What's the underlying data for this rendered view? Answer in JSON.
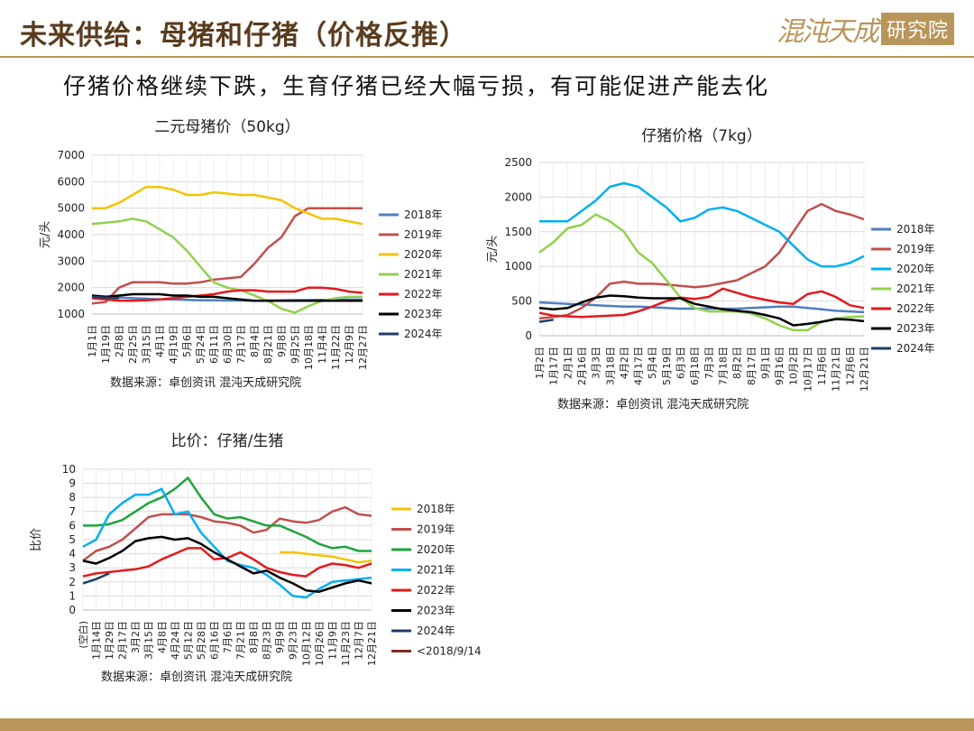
{
  "header": {
    "title": "未来供给：母猪和仔猪（价格反推）",
    "logo_text": "混沌天成",
    "logo_seal": "研究院",
    "subtitle": "仔猪价格继续下跌，生育仔猪已经大幅亏损，有可能促进产能去化"
  },
  "colors": {
    "accent": "#b8955a",
    "title": "#5a3c1e"
  },
  "chart_data": [
    {
      "id": "sow",
      "type": "line",
      "title": "二元母猪价（50kg）",
      "ylabel": "元/头",
      "xlabel": "",
      "source": "数据来源：卓创资讯  混沌天成研究院",
      "ylim": [
        1000,
        7000
      ],
      "yticks": [
        1000,
        2000,
        3000,
        4000,
        5000,
        6000,
        7000
      ],
      "grid": true,
      "legend_position": "right",
      "x_labels": [
        "1月1日",
        "1月19日",
        "2月8日",
        "2月25日",
        "3月15日",
        "4月1日",
        "4月19日",
        "5月6日",
        "5月24日",
        "6月11日",
        "6月30日",
        "7月17日",
        "8月4日",
        "8月21日",
        "9月8日",
        "9月25日",
        "10月18日",
        "11月4日",
        "11月22日",
        "12月9日",
        "12月27日"
      ],
      "series": [
        {
          "name": "2018年",
          "color": "#4e7fc1",
          "values": [
            1700,
            1660,
            1620,
            1600,
            1580,
            1560,
            1550,
            1540,
            1520,
            1520,
            1510,
            1510,
            1500,
            1510,
            1520,
            1530,
            1530,
            1540,
            1550,
            1550,
            1550
          ]
        },
        {
          "name": "2019年",
          "color": "#c0504d",
          "values": [
            1400,
            1450,
            2000,
            2200,
            2200,
            2200,
            2150,
            2150,
            2200,
            2300,
            2350,
            2400,
            2900,
            3500,
            3900,
            4700,
            5000,
            5000,
            5000,
            5000,
            5000
          ]
        },
        {
          "name": "2020年",
          "color": "#f2c400",
          "values": [
            5000,
            5000,
            5200,
            5500,
            5800,
            5800,
            5700,
            5500,
            5500,
            5600,
            5550,
            5500,
            5500,
            5400,
            5300,
            5000,
            4800,
            4600,
            4600,
            4500,
            4400
          ]
        },
        {
          "name": "2021年",
          "color": "#92d050",
          "values": [
            4400,
            4450,
            4500,
            4600,
            4500,
            4200,
            3900,
            3400,
            2800,
            2200,
            2000,
            1900,
            1700,
            1500,
            1200,
            1050,
            1300,
            1500,
            1600,
            1650,
            1650
          ]
        },
        {
          "name": "2022年",
          "color": "#e41a1c",
          "values": [
            1600,
            1550,
            1500,
            1500,
            1520,
            1550,
            1600,
            1650,
            1700,
            1750,
            1850,
            1900,
            1900,
            1850,
            1850,
            1850,
            2000,
            2000,
            1950,
            1850,
            1800
          ]
        },
        {
          "name": "2023年",
          "color": "#000000",
          "values": [
            1700,
            1650,
            1700,
            1750,
            1750,
            1750,
            1700,
            1700,
            1650,
            1650,
            1600,
            1550,
            1500,
            1500,
            1500,
            1500,
            1500,
            1500,
            1500,
            1500,
            1500
          ]
        },
        {
          "name": "2024年",
          "color": "#1f3d68",
          "values": [
            1650,
            1620,
            1600,
            null,
            null,
            null,
            null,
            null,
            null,
            null,
            null,
            null,
            null,
            null,
            null,
            null,
            null,
            null,
            null,
            null,
            null
          ]
        }
      ]
    },
    {
      "id": "piglet",
      "type": "line",
      "title": "仔猪价格（7kg）",
      "ylabel": "元/头",
      "xlabel": "",
      "source": "数据来源：卓创资讯  混沌天成研究院",
      "ylim": [
        0,
        2500
      ],
      "yticks": [
        0,
        500,
        1000,
        1500,
        2000,
        2500
      ],
      "grid": true,
      "legend_position": "right",
      "x_labels": [
        "1月2日",
        "1月17日",
        "2月1日",
        "2月16日",
        "3月3日",
        "3月18日",
        "4月2日",
        "4月17日",
        "5月4日",
        "5月19日",
        "6月3日",
        "6月18日",
        "7月3日",
        "7月18日",
        "8月2日",
        "8月17日",
        "9月1日",
        "9月16日",
        "10月2日",
        "10月17日",
        "11月6日",
        "11月21日",
        "12月6日",
        "12月21日"
      ],
      "series": [
        {
          "name": "2018年",
          "color": "#4e7fc1",
          "values": [
            480,
            470,
            460,
            450,
            440,
            430,
            420,
            420,
            410,
            400,
            390,
            390,
            390,
            390,
            390,
            400,
            410,
            420,
            420,
            400,
            380,
            360,
            350,
            340
          ]
        },
        {
          "name": "2019年",
          "color": "#c0504d",
          "values": [
            250,
            270,
            300,
            400,
            550,
            750,
            780,
            750,
            750,
            740,
            720,
            700,
            720,
            760,
            800,
            900,
            1000,
            1200,
            1500,
            1800,
            1900,
            1800,
            1750,
            1680
          ]
        },
        {
          "name": "2020年",
          "color": "#00b0f0",
          "values": [
            1650,
            1650,
            1650,
            1800,
            1950,
            2150,
            2200,
            2150,
            2000,
            1850,
            1650,
            1700,
            1820,
            1850,
            1800,
            1700,
            1600,
            1500,
            1300,
            1100,
            1000,
            1000,
            1050,
            1150
          ]
        },
        {
          "name": "2021年",
          "color": "#92d050",
          "values": [
            1200,
            1350,
            1550,
            1600,
            1750,
            1650,
            1500,
            1200,
            1050,
            800,
            550,
            400,
            350,
            350,
            350,
            320,
            250,
            150,
            80,
            80,
            200,
            250,
            270,
            280
          ]
        },
        {
          "name": "2022年",
          "color": "#e41a1c",
          "values": [
            330,
            290,
            280,
            270,
            280,
            290,
            300,
            350,
            420,
            500,
            550,
            530,
            560,
            680,
            620,
            560,
            520,
            480,
            460,
            600,
            640,
            560,
            440,
            400
          ]
        },
        {
          "name": "2023年",
          "color": "#000000",
          "values": [
            400,
            380,
            400,
            480,
            550,
            580,
            570,
            550,
            540,
            540,
            540,
            460,
            420,
            380,
            360,
            340,
            300,
            250,
            150,
            170,
            200,
            240,
            230,
            210
          ]
        },
        {
          "name": "2024年",
          "color": "#1f3d68",
          "values": [
            200,
            230,
            null,
            null,
            null,
            null,
            null,
            null,
            null,
            null,
            null,
            null,
            null,
            null,
            null,
            null,
            null,
            null,
            null,
            null,
            null,
            null,
            null,
            null
          ]
        }
      ]
    },
    {
      "id": "ratio",
      "type": "line",
      "title": "比价：仔猪/生猪",
      "ylabel": "比价",
      "xlabel": "",
      "source": "数据来源：卓创资讯  混沌天成研究院",
      "ylim": [
        0,
        10
      ],
      "yticks": [
        0,
        1,
        2,
        3,
        4,
        5,
        6,
        7,
        8,
        9,
        10
      ],
      "grid": true,
      "legend_position": "right",
      "x_labels": [
        "(空白)",
        "1月14日",
        "1月29日",
        "2月17日",
        "3月2日",
        "3月15日",
        "4月8日",
        "4月24日",
        "5月12日",
        "5月28日",
        "6月16日",
        "7月6日",
        "7月21日",
        "8月8日",
        "8月23日",
        "9月9日",
        "9月23日",
        "10月12日",
        "10月26日",
        "11月9日",
        "11月23日",
        "12月7日",
        "12月21日"
      ],
      "series": [
        {
          "name": "2018年",
          "color": "#f2c400",
          "values": [
            null,
            null,
            null,
            null,
            null,
            null,
            null,
            null,
            null,
            null,
            null,
            null,
            null,
            null,
            null,
            4.1,
            4.1,
            4.0,
            3.9,
            3.8,
            3.6,
            3.4,
            3.5
          ]
        },
        {
          "name": "2019年",
          "color": "#c0504d",
          "values": [
            3.5,
            4.2,
            4.5,
            5.0,
            5.8,
            6.6,
            6.8,
            6.8,
            6.8,
            6.6,
            6.3,
            6.2,
            6.0,
            5.5,
            5.7,
            6.5,
            6.3,
            6.2,
            6.4,
            7.0,
            7.3,
            6.8,
            6.7
          ]
        },
        {
          "name": "2020年",
          "color": "#1fa33c",
          "values": [
            6.0,
            6.0,
            6.1,
            6.4,
            7.0,
            7.6,
            8.0,
            8.6,
            9.4,
            8.0,
            6.8,
            6.5,
            6.6,
            6.3,
            6.0,
            6.0,
            5.6,
            5.2,
            4.7,
            4.4,
            4.5,
            4.2,
            4.2
          ]
        },
        {
          "name": "2021年",
          "color": "#00b0f0",
          "values": [
            4.5,
            5.0,
            6.8,
            7.6,
            8.2,
            8.2,
            8.6,
            6.8,
            7.0,
            5.5,
            4.5,
            3.5,
            3.2,
            3.0,
            2.5,
            1.8,
            1.0,
            0.9,
            1.5,
            2.0,
            2.1,
            2.2,
            2.3
          ]
        },
        {
          "name": "2022年",
          "color": "#e41a1c",
          "values": [
            2.4,
            2.6,
            2.7,
            2.8,
            2.9,
            3.1,
            3.6,
            4.0,
            4.4,
            4.4,
            3.6,
            3.7,
            4.1,
            3.6,
            3.0,
            2.7,
            2.5,
            2.4,
            3.0,
            3.3,
            3.2,
            3.0,
            3.3
          ]
        },
        {
          "name": "2023年",
          "color": "#000000",
          "values": [
            3.5,
            3.3,
            3.7,
            4.2,
            4.9,
            5.1,
            5.2,
            5.0,
            5.1,
            4.7,
            4.1,
            3.6,
            3.1,
            2.6,
            2.8,
            2.3,
            1.9,
            1.4,
            1.3,
            1.6,
            1.9,
            2.1,
            1.9
          ]
        },
        {
          "name": "2024年",
          "color": "#1f3d68",
          "values": [
            1.9,
            2.2,
            2.6,
            null,
            null,
            null,
            null,
            null,
            null,
            null,
            null,
            null,
            null,
            null,
            null,
            null,
            null,
            null,
            null,
            null,
            null,
            null,
            null
          ]
        },
        {
          "name": "<2018/9/14",
          "color": "#7b2d26",
          "values": [
            null,
            null,
            null,
            null,
            null,
            null,
            null,
            null,
            null,
            null,
            null,
            null,
            null,
            null,
            null,
            null,
            null,
            null,
            null,
            null,
            null,
            null,
            null
          ]
        }
      ]
    }
  ]
}
